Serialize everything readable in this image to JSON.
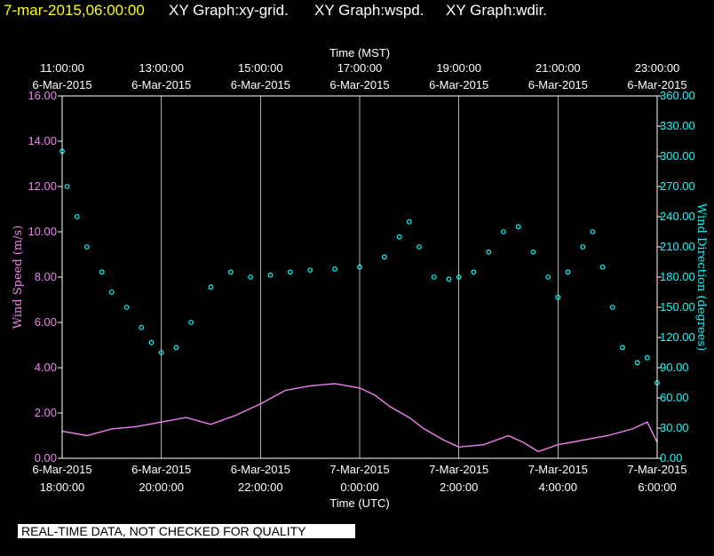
{
  "header": {
    "timestamp": "7-mar-2015,06:00:00",
    "graphs": [
      "XY Graph:xy-grid.",
      "XY Graph:wspd.",
      "XY Graph:wdir."
    ]
  },
  "disclaimer": "REAL-TIME DATA, NOT CHECKED FOR QUALITY",
  "colors": {
    "speed": "#ee82ee",
    "direction": "#00ffff",
    "grid": "#ffffff",
    "header_date": "#ffff00"
  },
  "chart_data": {
    "type": "scatter",
    "top_axis": {
      "label": "Time (MST)",
      "ticks": [
        {
          "line1": "11:00:00",
          "line2": "6-Mar-2015"
        },
        {
          "line1": "13:00:00",
          "line2": "6-Mar-2015"
        },
        {
          "line1": "15:00:00",
          "line2": "6-Mar-2015"
        },
        {
          "line1": "17:00:00",
          "line2": "6-Mar-2015"
        },
        {
          "line1": "19:00:00",
          "line2": "6-Mar-2015"
        },
        {
          "line1": "21:00:00",
          "line2": "6-Mar-2015"
        },
        {
          "line1": "23:00:00",
          "line2": "6-Mar-2015"
        }
      ]
    },
    "bottom_axis": {
      "label": "Time (UTC)",
      "ticks": [
        {
          "line1": "6-Mar-2015",
          "line2": "18:00:00"
        },
        {
          "line1": "6-Mar-2015",
          "line2": "20:00:00"
        },
        {
          "line1": "6-Mar-2015",
          "line2": "22:00:00"
        },
        {
          "line1": "7-Mar-2015",
          "line2": "0:00:00"
        },
        {
          "line1": "7-Mar-2015",
          "line2": "2:00:00"
        },
        {
          "line1": "7-Mar-2015",
          "line2": "4:00:00"
        },
        {
          "line1": "7-Mar-2015",
          "line2": "6:00:00"
        }
      ],
      "range_hours": [
        0,
        12
      ]
    },
    "left_axis": {
      "label": "Wind Speed (m/s)",
      "ylim": [
        0,
        16
      ],
      "ticks": [
        "0.00",
        "2.00",
        "4.00",
        "6.00",
        "8.00",
        "10.00",
        "12.00",
        "14.00",
        "16.00"
      ]
    },
    "right_axis": {
      "label": "Wind Direction (degrees)",
      "ylim": [
        0,
        360
      ],
      "ticks": [
        "0.00",
        "30.00",
        "60.00",
        "90.00",
        "120.00",
        "150.00",
        "180.00",
        "210.00",
        "240.00",
        "270.00",
        "300.00",
        "330.00",
        "360.00"
      ]
    },
    "grid": true,
    "series": [
      {
        "kind": "line",
        "axis": "left",
        "points": [
          [
            0,
            1.2
          ],
          [
            0.5,
            1.0
          ],
          [
            1,
            1.3
          ],
          [
            1.5,
            1.4
          ],
          [
            2,
            1.6
          ],
          [
            2.5,
            1.8
          ],
          [
            3,
            1.5
          ],
          [
            3.5,
            1.9
          ],
          [
            4,
            2.4
          ],
          [
            4.5,
            3.0
          ],
          [
            5,
            3.2
          ],
          [
            5.5,
            3.3
          ],
          [
            6,
            3.1
          ],
          [
            6.3,
            2.8
          ],
          [
            6.6,
            2.3
          ],
          [
            7,
            1.8
          ],
          [
            7.3,
            1.3
          ],
          [
            7.7,
            0.8
          ],
          [
            8,
            0.5
          ],
          [
            8.5,
            0.6
          ],
          [
            9,
            1.0
          ],
          [
            9.3,
            0.7
          ],
          [
            9.6,
            0.3
          ],
          [
            10,
            0.6
          ],
          [
            10.5,
            0.8
          ],
          [
            11,
            1.0
          ],
          [
            11.5,
            1.3
          ],
          [
            11.8,
            1.6
          ],
          [
            12,
            0.7
          ]
        ]
      },
      {
        "kind": "scatter",
        "axis": "right",
        "points": [
          [
            0,
            305
          ],
          [
            0.1,
            270
          ],
          [
            0.3,
            240
          ],
          [
            0.5,
            210
          ],
          [
            0.8,
            185
          ],
          [
            1,
            165
          ],
          [
            1.3,
            150
          ],
          [
            1.6,
            130
          ],
          [
            1.8,
            115
          ],
          [
            2,
            105
          ],
          [
            2.3,
            110
          ],
          [
            2.6,
            135
          ],
          [
            3,
            170
          ],
          [
            3.4,
            185
          ],
          [
            3.8,
            180
          ],
          [
            4.2,
            182
          ],
          [
            4.6,
            185
          ],
          [
            5,
            187
          ],
          [
            5.5,
            188
          ],
          [
            6,
            190
          ],
          [
            6.5,
            200
          ],
          [
            6.8,
            220
          ],
          [
            7,
            235
          ],
          [
            7.2,
            210
          ],
          [
            7.5,
            180
          ],
          [
            7.8,
            178
          ],
          [
            8,
            180
          ],
          [
            8.3,
            185
          ],
          [
            8.6,
            205
          ],
          [
            8.9,
            225
          ],
          [
            9.2,
            230
          ],
          [
            9.5,
            205
          ],
          [
            9.8,
            180
          ],
          [
            10,
            160
          ],
          [
            10.2,
            185
          ],
          [
            10.5,
            210
          ],
          [
            10.7,
            225
          ],
          [
            10.9,
            190
          ],
          [
            11.1,
            150
          ],
          [
            11.3,
            110
          ],
          [
            11.6,
            95
          ],
          [
            11.8,
            100
          ],
          [
            12,
            75
          ]
        ]
      }
    ]
  }
}
